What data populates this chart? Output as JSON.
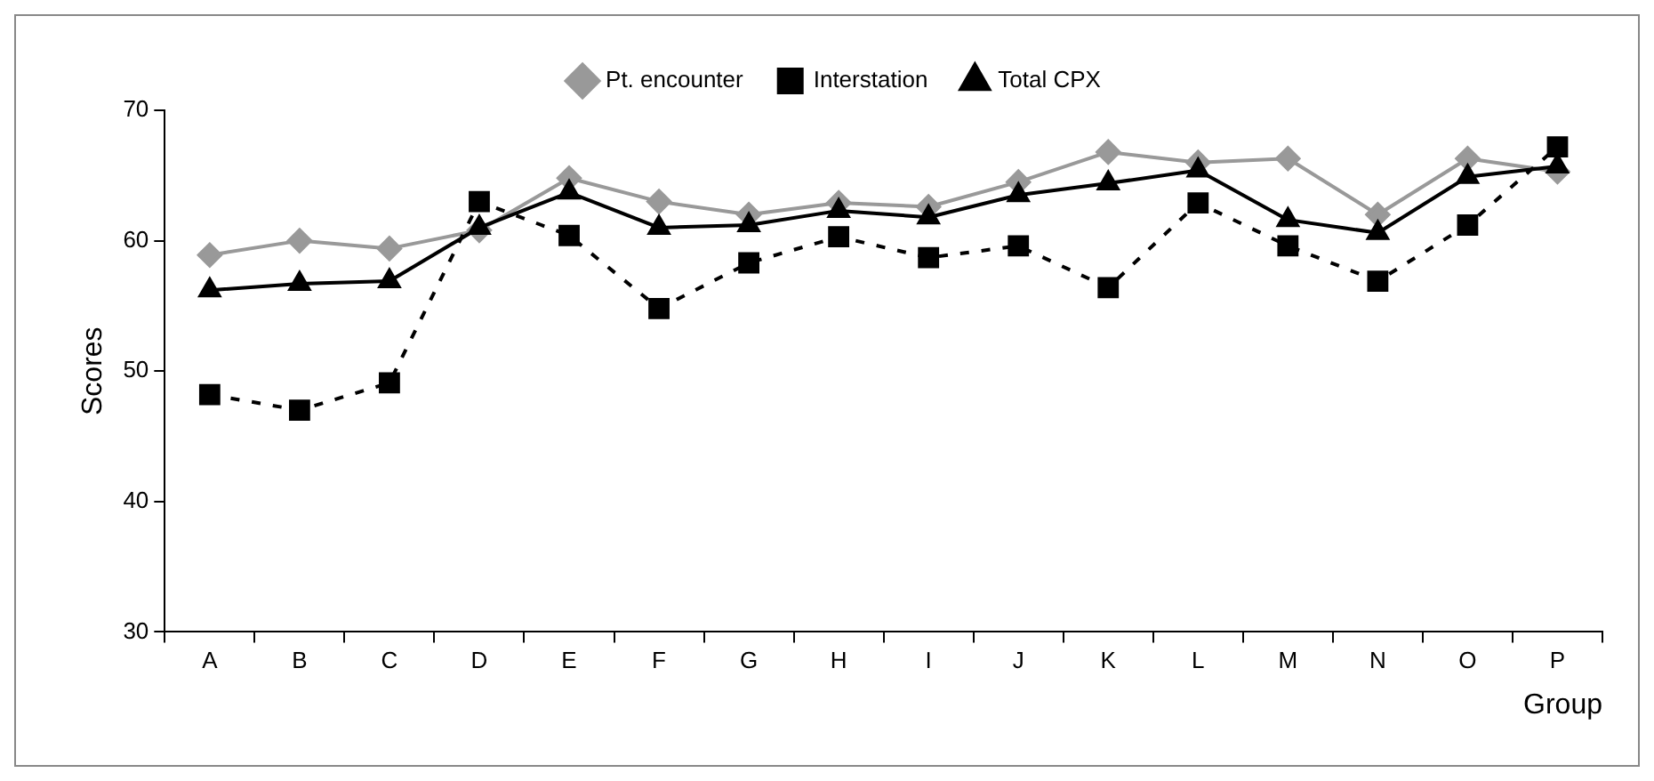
{
  "chart_data": {
    "type": "line",
    "xlabel": "Group",
    "ylabel": "Scores",
    "categories": [
      "A",
      "B",
      "C",
      "D",
      "E",
      "F",
      "G",
      "H",
      "I",
      "J",
      "K",
      "L",
      "M",
      "N",
      "O",
      "P"
    ],
    "series": [
      {
        "name": "Pt. encounter",
        "color": "#999999",
        "marker": "diamond",
        "line_style": "solid",
        "values": [
          58.9,
          60,
          59.4,
          60.8,
          64.8,
          63,
          62,
          62.9,
          62.6,
          64.5,
          66.8,
          66,
          66.3,
          62,
          66.3,
          65.3
        ]
      },
      {
        "name": "Interstation",
        "color": "#000000",
        "marker": "square",
        "line_style": "dashed",
        "values": [
          48.2,
          47,
          49.1,
          63,
          60.4,
          54.8,
          58.3,
          60.3,
          58.7,
          59.6,
          56.4,
          62.9,
          59.6,
          56.9,
          61.2,
          67.2
        ]
      },
      {
        "name": "Total CPX",
        "color": "#000000",
        "marker": "triangle",
        "line_style": "solid",
        "values": [
          56.2,
          56.7,
          56.9,
          61,
          63.7,
          61,
          61.2,
          62.3,
          61.8,
          63.5,
          64.4,
          65.4,
          61.6,
          60.6,
          64.9,
          65.7
        ]
      }
    ],
    "ylim": [
      30,
      70
    ],
    "yticks": [
      30,
      40,
      50,
      60,
      70
    ],
    "grid": false,
    "legend": "top"
  }
}
